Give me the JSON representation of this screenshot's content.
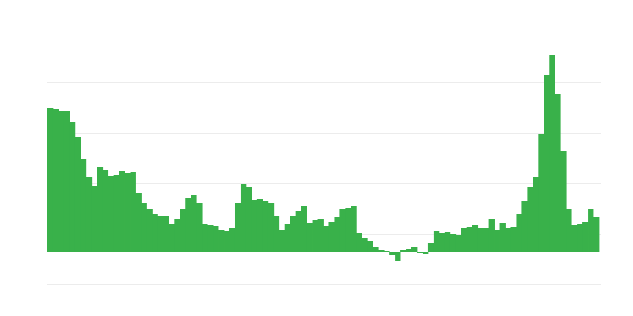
{
  "chart_data": {
    "type": "bar",
    "values": [
      182,
      181,
      178,
      179,
      165,
      145,
      118,
      95,
      84,
      107,
      104,
      96,
      97,
      103,
      100,
      101,
      75,
      62,
      54,
      48,
      46,
      45,
      36,
      42,
      55,
      68,
      72,
      62,
      36,
      34,
      33,
      28,
      26,
      30,
      62,
      86,
      82,
      66,
      67,
      65,
      62,
      45,
      28,
      35,
      45,
      52,
      58,
      37,
      40,
      42,
      33,
      38,
      44,
      54,
      56,
      58,
      24,
      18,
      14,
      6,
      3,
      1,
      -4,
      -12,
      3,
      4,
      6,
      -1,
      -3,
      12,
      26,
      24,
      25,
      23,
      22,
      31,
      32,
      34,
      30,
      30,
      42,
      28,
      37,
      30,
      32,
      48,
      64,
      82,
      95,
      150,
      224,
      250,
      200,
      128,
      55,
      34,
      36,
      38,
      54,
      44
    ],
    "color": "#39b14a",
    "ylim": [
      -41,
      279
    ],
    "yticks": [
      -41,
      23,
      87,
      151,
      215,
      279
    ],
    "grid": true
  }
}
